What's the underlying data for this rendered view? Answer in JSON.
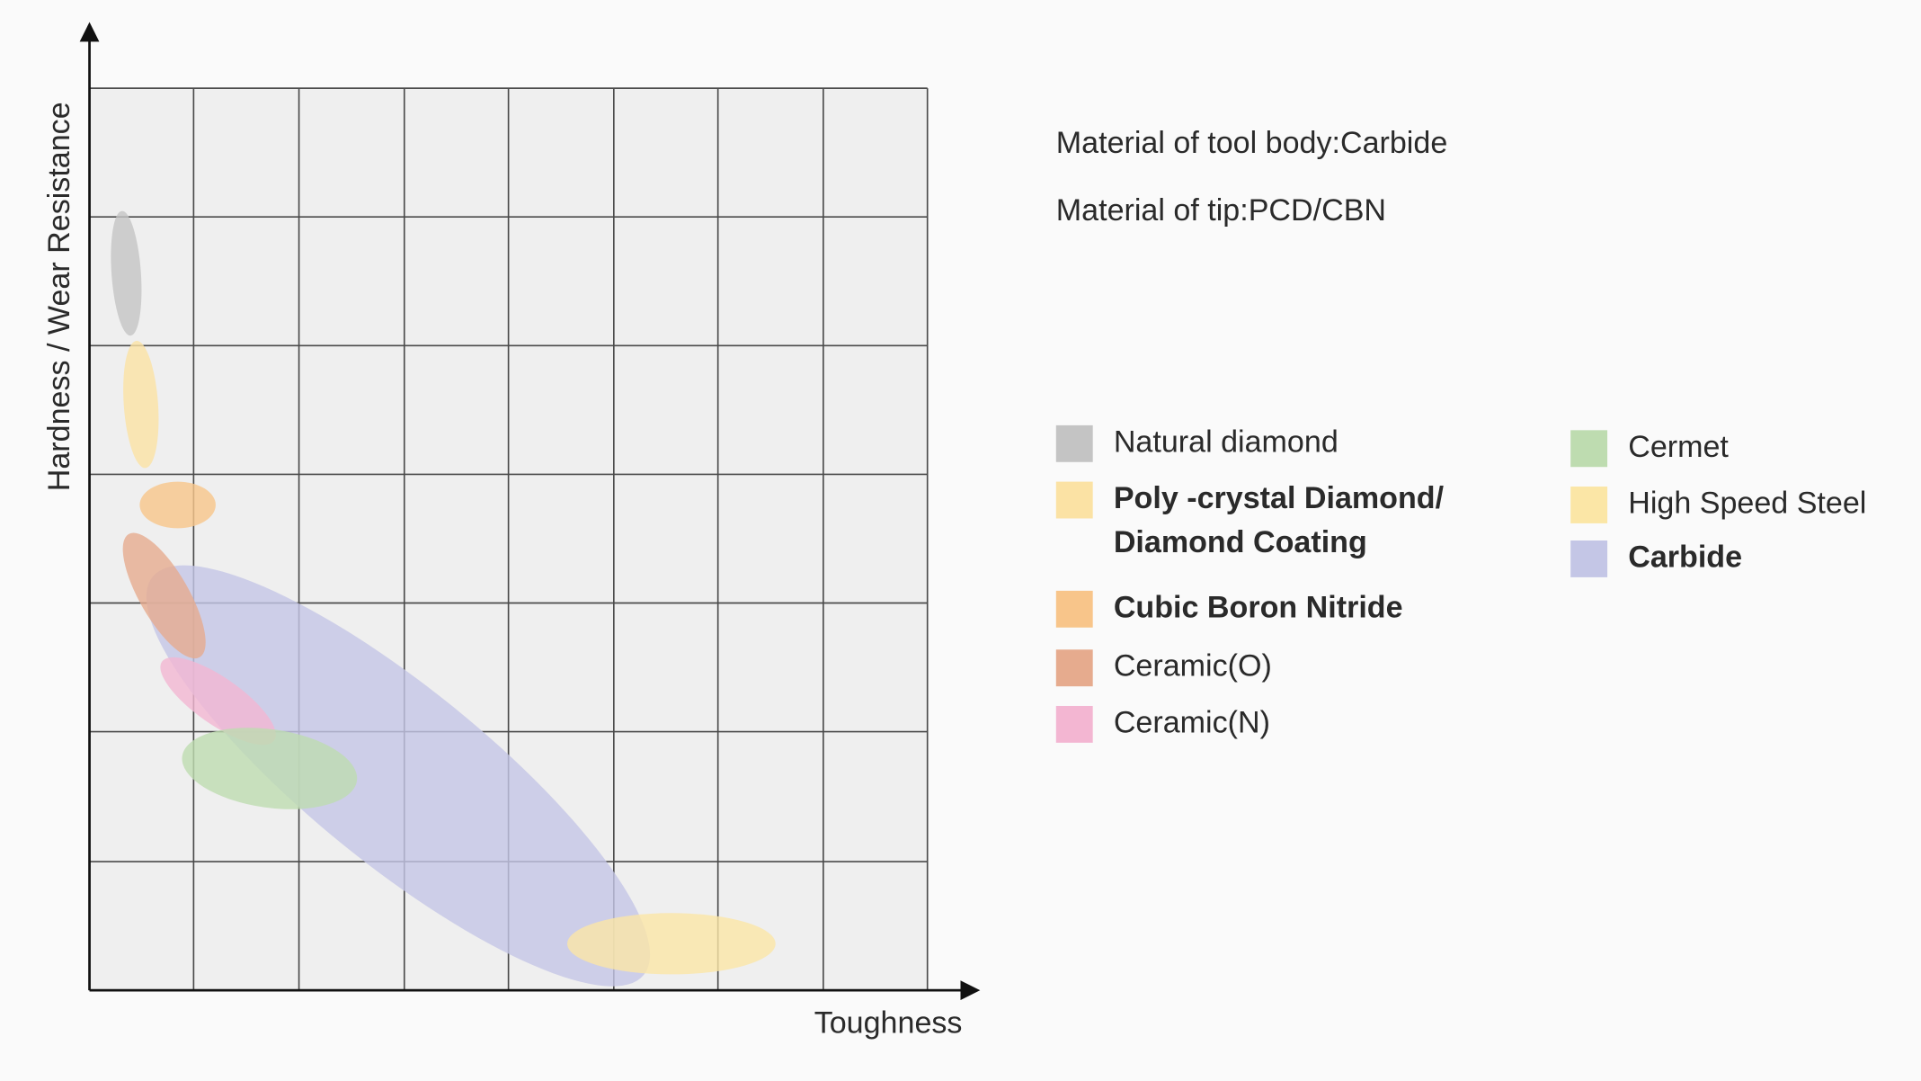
{
  "x_label": "Toughness",
  "y_label": "Hardness / Wear Resistance",
  "info": [
    "Material of tool body:Carbide",
    "Material of tip:PCD/CBN"
  ],
  "legend": [
    {
      "lines": [
        "Natural diamond"
      ],
      "color": "#c4c4c4",
      "bold": false
    },
    {
      "lines": [
        "Poly -crystal Diamond/",
        "Diamond Coating"
      ],
      "color": "#fbe2a4",
      "bold": true
    },
    {
      "lines": [
        "Cubic Boron Nitride"
      ],
      "color": "#f8c58a",
      "bold": true
    },
    {
      "lines": [
        "Ceramic(O)"
      ],
      "color": "#e6ab8e",
      "bold": false
    },
    {
      "lines": [
        "Ceramic(N)"
      ],
      "color": "#f3b6d2",
      "bold": false
    },
    {
      "lines": [
        "Cermet"
      ],
      "color": "#bedcb0",
      "bold": false
    },
    {
      "lines": [
        "High Speed Steel"
      ],
      "color": "#fbe6a6",
      "bold": false
    },
    {
      "lines": [
        "Carbide"
      ],
      "color": "#c4c6e6",
      "bold": true
    }
  ]
}
